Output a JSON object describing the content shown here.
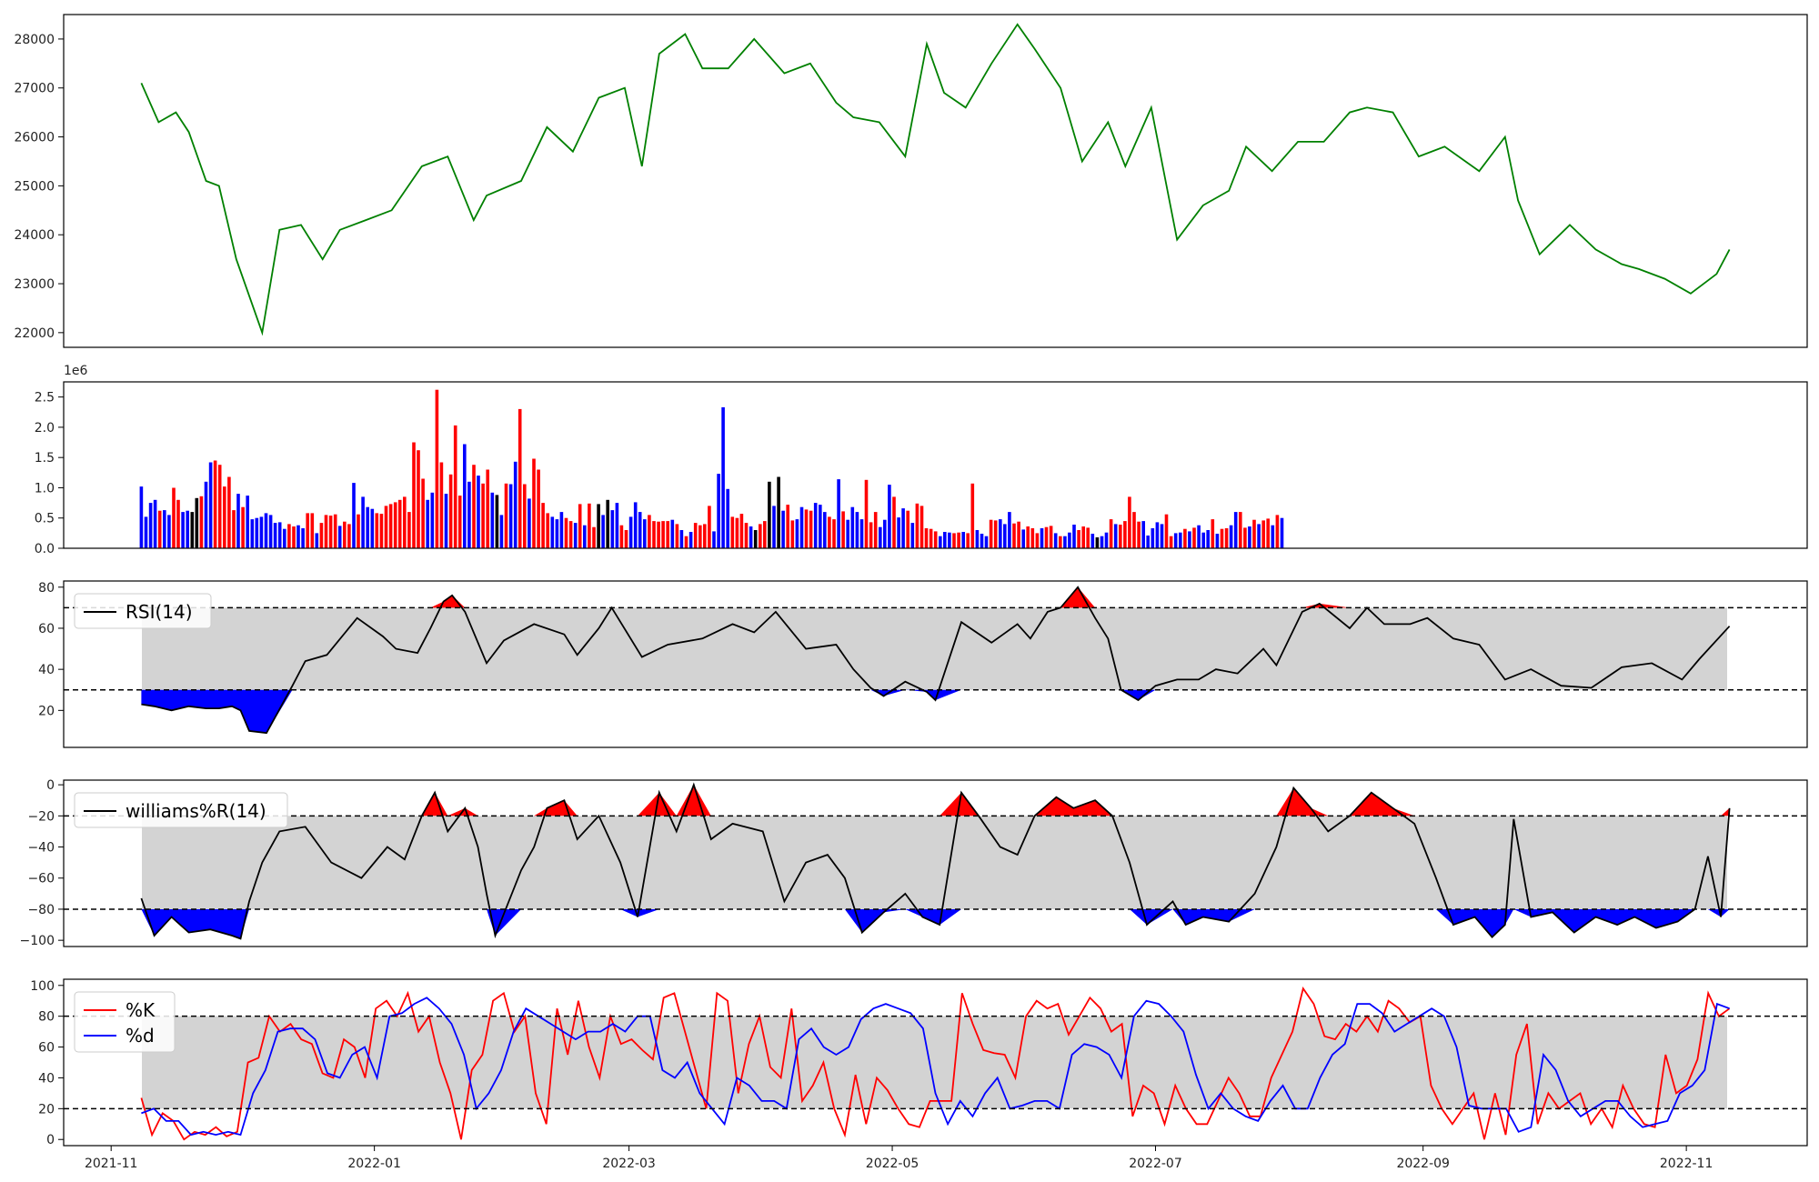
{
  "chart_data": [
    {
      "type": "line",
      "panel": "price",
      "x": [
        "2021-11-08",
        "2021-11-12",
        "2021-11-16",
        "2021-11-19",
        "2021-11-23",
        "2021-11-26",
        "2021-11-30",
        "2021-12-06",
        "2021-12-10",
        "2021-12-15",
        "2021-12-20",
        "2021-12-24",
        "2021-12-30",
        "2022-01-05",
        "2022-01-12",
        "2022-01-18",
        "2022-01-24",
        "2022-01-27",
        "2022-02-04",
        "2022-02-10",
        "2022-02-16",
        "2022-02-22",
        "2022-02-28",
        "2022-03-04",
        "2022-03-08",
        "2022-03-14",
        "2022-03-18",
        "2022-03-24",
        "2022-03-30",
        "2022-04-06",
        "2022-04-12",
        "2022-04-18",
        "2022-04-22",
        "2022-04-28",
        "2022-05-04",
        "2022-05-09",
        "2022-05-13",
        "2022-05-18",
        "2022-05-24",
        "2022-05-30",
        "2022-06-03",
        "2022-06-09",
        "2022-06-14",
        "2022-06-20",
        "2022-06-24",
        "2022-06-30",
        "2022-07-06",
        "2022-07-12",
        "2022-07-18",
        "2022-07-22",
        "2022-07-28",
        "2022-08-03",
        "2022-08-09",
        "2022-08-15",
        "2022-08-19",
        "2022-08-25",
        "2022-08-31",
        "2022-09-06",
        "2022-09-14",
        "2022-09-20",
        "2022-09-23",
        "2022-09-28",
        "2022-10-05",
        "2022-10-11",
        "2022-10-17",
        "2022-10-21",
        "2022-10-27",
        "2022-11-02",
        "2022-11-08",
        "2022-11-11"
      ],
      "values": [
        27100,
        26300,
        26500,
        26100,
        25100,
        25000,
        23500,
        22000,
        24100,
        24200,
        23500,
        24100,
        24300,
        24500,
        25400,
        25600,
        24300,
        24800,
        25100,
        26200,
        25700,
        26800,
        27000,
        25400,
        27700,
        28100,
        27400,
        27400,
        28000,
        27300,
        27500,
        26700,
        26400,
        26300,
        25600,
        27900,
        26900,
        26600,
        27500,
        28300,
        27800,
        27000,
        25500,
        26300,
        25400,
        26600,
        23900,
        24600,
        24900,
        25800,
        25300,
        25900,
        25900,
        26500,
        26600,
        26500,
        25600,
        25800,
        25300,
        26000,
        24700,
        23600,
        24200,
        23700,
        23400,
        23300,
        23100,
        22800,
        23200,
        23700
      ],
      "color": "#008000",
      "ylim": [
        21700,
        28500
      ],
      "yticks": [
        22000,
        23000,
        24000,
        25000,
        26000,
        27000,
        28000
      ]
    },
    {
      "type": "bar",
      "panel": "volume",
      "x_start": "2021-11-08",
      "interval_days": 1.07,
      "values": [
        1.02,
        0.52,
        0.75,
        0.8,
        0.62,
        0.63,
        0.55,
        1.0,
        0.8,
        0.6,
        0.62,
        0.6,
        0.83,
        0.86,
        1.1,
        1.42,
        1.45,
        1.38,
        1.02,
        1.18,
        0.63,
        0.9,
        0.68,
        0.87,
        0.48,
        0.5,
        0.52,
        0.58,
        0.55,
        0.42,
        0.43,
        0.32,
        0.4,
        0.36,
        0.38,
        0.33,
        0.58,
        0.58,
        0.25,
        0.42,
        0.55,
        0.54,
        0.56,
        0.37,
        0.44,
        0.4,
        1.08,
        0.56,
        0.85,
        0.68,
        0.65,
        0.58,
        0.57,
        0.7,
        0.73,
        0.76,
        0.8,
        0.85,
        0.6,
        1.75,
        1.62,
        1.15,
        0.8,
        0.92,
        2.62,
        1.42,
        0.9,
        1.22,
        2.03,
        0.87,
        1.72,
        1.1,
        1.38,
        1.2,
        1.07,
        1.3,
        0.92,
        0.88,
        0.55,
        1.07,
        1.06,
        1.43,
        2.3,
        1.06,
        0.82,
        1.48,
        1.3,
        0.75,
        0.58,
        0.52,
        0.48,
        0.6,
        0.5,
        0.45,
        0.42,
        0.73,
        0.38,
        0.74,
        0.35,
        0.73,
        0.55,
        0.8,
        0.63,
        0.75,
        0.38,
        0.3,
        0.52,
        0.76,
        0.6,
        0.48,
        0.55,
        0.45,
        0.44,
        0.45,
        0.45,
        0.47,
        0.4,
        0.3,
        0.2,
        0.27,
        0.42,
        0.38,
        0.4,
        0.7,
        0.28,
        1.23,
        2.33,
        0.98,
        0.52,
        0.5,
        0.57,
        0.42,
        0.36,
        0.3,
        0.4,
        0.45,
        1.1,
        0.7,
        1.18,
        0.62,
        0.72,
        0.46,
        0.48,
        0.68,
        0.64,
        0.62,
        0.75,
        0.72,
        0.6,
        0.52,
        0.48,
        1.14,
        0.61,
        0.47,
        0.68,
        0.6,
        0.48,
        1.13,
        0.43,
        0.6,
        0.35,
        0.47,
        1.05,
        0.85,
        0.51,
        0.66,
        0.62,
        0.42,
        0.74,
        0.7,
        0.33,
        0.32,
        0.28,
        0.2,
        0.27,
        0.26,
        0.25,
        0.26,
        0.27,
        0.25,
        1.07,
        0.3,
        0.24,
        0.2,
        0.47,
        0.46,
        0.48,
        0.4,
        0.6,
        0.41,
        0.44,
        0.31,
        0.36,
        0.33,
        0.25,
        0.33,
        0.35,
        0.37,
        0.25,
        0.2,
        0.2,
        0.26,
        0.39,
        0.3,
        0.36,
        0.34,
        0.24,
        0.18,
        0.2,
        0.26,
        0.48,
        0.4,
        0.39,
        0.45,
        0.85,
        0.6,
        0.44,
        0.45,
        0.21,
        0.33,
        0.43,
        0.4,
        0.56,
        0.2,
        0.25,
        0.26,
        0.32,
        0.28,
        0.34,
        0.38,
        0.26,
        0.3,
        0.48,
        0.24,
        0.32,
        0.33,
        0.38,
        0.6,
        0.6,
        0.34,
        0.36,
        0.47,
        0.4,
        0.46,
        0.49,
        0.38,
        0.55,
        0.5
      ],
      "colors": "bbbbrbbrrbbkkrbbrrrrrbrbbbbbbbbbrrbbrrbrrrrbrrbrbbbrrrrrrrrrrrbbrrbrrrbbrbrrbkbrbbrrbrrrrbbbrrbrbrrkbkbbrrbbbbrrrrrbrbrbrrrrbbbbrrrrbkrrkbkbrrbbrrbbbrrbrbbbbrrrbbbrbbrbrrrrrbbbrrbrrbbbrrbbbrrbrrrbrrbrbbbrrrbkbbrbrrrrrbbbbbrrbbrbrbbbrbrrbbrrbrbrrbrbrrrrrrbrrbrrrrbr",
      "ylim": [
        0,
        2.75
      ],
      "yticks": [
        0.0,
        0.5,
        1.0,
        1.5,
        2.0,
        2.5
      ],
      "offset_label": "1e6"
    },
    {
      "type": "line",
      "panel": "rsi",
      "series": [
        {
          "name": "RSI(14)",
          "color": "#000000"
        }
      ],
      "x": [
        "2021-11-08",
        "2021-11-11",
        "2021-11-15",
        "2021-11-19",
        "2021-11-23",
        "2021-11-26",
        "2021-11-29",
        "2021-12-01",
        "2021-12-03",
        "2021-12-07",
        "2021-12-13",
        "2021-12-16",
        "2021-12-21",
        "2021-12-28",
        "2022-01-03",
        "2022-01-06",
        "2022-01-11",
        "2022-01-14",
        "2022-01-17",
        "2022-01-19",
        "2022-01-22",
        "2022-01-27",
        "2022-01-31",
        "2022-02-07",
        "2022-02-14",
        "2022-02-17",
        "2022-02-22",
        "2022-02-25",
        "2022-03-04",
        "2022-03-10",
        "2022-03-18",
        "2022-03-25",
        "2022-03-30",
        "2022-04-04",
        "2022-04-11",
        "2022-04-18",
        "2022-04-22",
        "2022-04-26",
        "2022-04-29",
        "2022-05-04",
        "2022-05-09",
        "2022-05-11",
        "2022-05-17",
        "2022-05-24",
        "2022-05-30",
        "2022-06-02",
        "2022-06-06",
        "2022-06-09",
        "2022-06-13",
        "2022-06-17",
        "2022-06-20",
        "2022-06-23",
        "2022-06-27",
        "2022-07-01",
        "2022-07-06",
        "2022-07-11",
        "2022-07-15",
        "2022-07-20",
        "2022-07-26",
        "2022-07-29",
        "2022-08-04",
        "2022-08-08",
        "2022-08-15",
        "2022-08-19",
        "2022-08-23",
        "2022-08-29",
        "2022-09-02",
        "2022-09-08",
        "2022-09-14",
        "2022-09-20",
        "2022-09-26",
        "2022-10-03",
        "2022-10-10",
        "2022-10-17",
        "2022-10-24",
        "2022-10-31",
        "2022-11-04",
        "2022-11-11"
      ],
      "values": [
        23,
        22,
        20,
        22,
        21,
        21,
        22,
        20,
        10,
        9,
        32,
        44,
        47,
        65,
        56,
        50,
        48,
        60,
        73,
        76,
        68,
        43,
        54,
        62,
        57,
        47,
        60,
        70,
        46,
        52,
        55,
        62,
        58,
        68,
        50,
        52,
        40,
        31,
        27,
        34,
        29,
        25,
        63,
        53,
        62,
        55,
        68,
        70,
        80,
        65,
        55,
        30,
        25,
        32,
        35,
        35,
        40,
        38,
        50,
        42,
        68,
        72,
        60,
        70,
        62,
        62,
        65,
        55,
        52,
        35,
        40,
        32,
        31,
        41,
        43,
        35,
        45,
        61
      ],
      "thresholds": [
        70,
        30
      ],
      "ylim": [
        2,
        83
      ],
      "yticks": [
        20,
        40,
        60,
        80
      ]
    },
    {
      "type": "line",
      "panel": "williams",
      "series": [
        {
          "name": "williams%R(14)",
          "color": "#000000"
        }
      ],
      "x": [
        "2021-11-08",
        "2021-11-11",
        "2021-11-15",
        "2021-11-19",
        "2021-11-24",
        "2021-11-29",
        "2021-12-01",
        "2021-12-03",
        "2021-12-06",
        "2021-12-10",
        "2021-12-16",
        "2021-12-22",
        "2021-12-29",
        "2022-01-04",
        "2022-01-08",
        "2022-01-12",
        "2022-01-15",
        "2022-01-18",
        "2022-01-22",
        "2022-01-25",
        "2022-01-27",
        "2022-01-29",
        "2022-02-04",
        "2022-02-07",
        "2022-02-10",
        "2022-02-14",
        "2022-02-17",
        "2022-02-22",
        "2022-02-27",
        "2022-03-03",
        "2022-03-08",
        "2022-03-12",
        "2022-03-16",
        "2022-03-20",
        "2022-03-25",
        "2022-04-01",
        "2022-04-06",
        "2022-04-11",
        "2022-04-16",
        "2022-04-20",
        "2022-04-24",
        "2022-04-29",
        "2022-05-04",
        "2022-05-08",
        "2022-05-12",
        "2022-05-17",
        "2022-05-21",
        "2022-05-26",
        "2022-05-30",
        "2022-06-03",
        "2022-06-08",
        "2022-06-12",
        "2022-06-17",
        "2022-06-21",
        "2022-06-25",
        "2022-06-29",
        "2022-07-05",
        "2022-07-08",
        "2022-07-12",
        "2022-07-18",
        "2022-07-24",
        "2022-07-29",
        "2022-08-02",
        "2022-08-06",
        "2022-08-10",
        "2022-08-15",
        "2022-08-20",
        "2022-08-25",
        "2022-08-30",
        "2022-09-04",
        "2022-09-08",
        "2022-09-13",
        "2022-09-17",
        "2022-09-20",
        "2022-09-22",
        "2022-09-26",
        "2022-10-01",
        "2022-10-06",
        "2022-10-11",
        "2022-10-16",
        "2022-10-20",
        "2022-10-25",
        "2022-10-30",
        "2022-11-03",
        "2022-11-06",
        "2022-11-09",
        "2022-11-11"
      ],
      "values": [
        -73,
        -97,
        -85,
        -95,
        -93,
        -97,
        -99,
        -75,
        -50,
        -30,
        -27,
        -50,
        -60,
        -40,
        -48,
        -20,
        -5,
        -30,
        -15,
        -40,
        -70,
        -97,
        -55,
        -40,
        -15,
        -10,
        -35,
        -20,
        -50,
        -85,
        -5,
        -30,
        0,
        -35,
        -25,
        -30,
        -75,
        -50,
        -45,
        -60,
        -95,
        -82,
        -70,
        -85,
        -90,
        -5,
        -20,
        -40,
        -45,
        -20,
        -8,
        -15,
        -10,
        -20,
        -50,
        -90,
        -75,
        -90,
        -85,
        -88,
        -70,
        -40,
        -2,
        -15,
        -30,
        -20,
        -5,
        -15,
        -25,
        -60,
        -90,
        -85,
        -98,
        -90,
        -22,
        -85,
        -82,
        -95,
        -85,
        -90,
        -85,
        -92,
        -88,
        -80,
        -46,
        -85,
        -15
      ],
      "thresholds": [
        -20,
        -80
      ],
      "ylim": [
        -104,
        3
      ],
      "yticks": [
        -100,
        -80,
        -60,
        -40,
        -20,
        0
      ]
    },
    {
      "type": "line",
      "panel": "stochastic",
      "series": [
        {
          "name": "%K",
          "color": "#ff0000",
          "values": [
            27,
            3,
            17,
            12,
            0,
            5,
            3,
            8,
            2,
            5,
            50,
            53,
            80,
            70,
            75,
            65,
            62,
            43,
            40,
            65,
            60,
            40,
            85,
            90,
            80,
            95,
            70,
            80,
            50,
            30,
            0,
            45,
            55,
            90,
            95,
            70,
            80,
            30,
            10,
            85,
            55,
            90,
            60,
            40,
            80,
            62,
            65,
            58,
            52,
            92,
            95,
            70,
            45,
            20,
            95,
            90,
            30,
            62,
            80,
            47,
            40,
            85,
            25,
            35,
            50,
            20,
            3,
            42,
            10,
            40,
            32,
            20,
            10,
            8,
            25,
            25,
            25,
            95,
            75,
            58,
            56,
            55,
            40,
            80,
            90,
            85,
            88,
            68,
            80,
            92,
            85,
            70,
            75,
            15,
            35,
            30,
            10,
            35,
            20,
            10,
            10,
            25,
            40,
            30,
            15,
            15,
            40,
            55,
            70,
            98,
            88,
            67,
            65,
            75,
            70,
            80,
            70,
            90,
            85,
            76,
            80,
            35,
            20,
            10,
            20,
            30,
            0,
            30,
            3,
            55,
            75,
            10,
            30,
            20,
            25,
            30,
            10,
            20,
            8,
            35,
            20,
            10,
            8,
            55,
            30,
            35,
            52,
            95,
            80,
            85
          ]
        },
        {
          "name": "%d",
          "color": "#0000ff",
          "values": [
            17,
            20,
            12,
            12,
            3,
            5,
            3,
            5,
            3,
            30,
            45,
            70,
            72,
            72,
            65,
            43,
            40,
            55,
            60,
            40,
            80,
            82,
            88,
            92,
            85,
            75,
            55,
            20,
            30,
            45,
            70,
            85,
            80,
            75,
            70,
            65,
            70,
            70,
            75,
            70,
            80,
            80,
            45,
            40,
            50,
            30,
            20,
            10,
            40,
            35,
            25,
            25,
            20,
            65,
            72,
            60,
            55,
            60,
            78,
            85,
            88,
            85,
            82,
            72,
            30,
            10,
            25,
            15,
            30,
            40,
            20,
            22,
            25,
            25,
            20,
            55,
            62,
            60,
            55,
            40,
            80,
            90,
            88,
            80,
            70,
            42,
            20,
            30,
            20,
            15,
            12,
            25,
            35,
            20,
            20,
            40,
            55,
            62,
            88,
            88,
            82,
            70,
            75,
            80,
            85,
            80,
            60,
            22,
            20,
            20,
            20,
            5,
            8,
            55,
            45,
            25,
            15,
            20,
            25,
            25,
            15,
            8,
            10,
            12,
            30,
            35,
            45,
            88,
            85
          ]
        }
      ],
      "x_start": "2021-11-08",
      "x_end": "2022-11-11",
      "thresholds": [
        80,
        20
      ],
      "ylim": [
        -4,
        104
      ],
      "yticks": [
        0,
        20,
        40,
        60,
        80,
        100
      ]
    }
  ],
  "x_axis": {
    "ticks": [
      "2021-11",
      "2022-01",
      "2022-03",
      "2022-05",
      "2022-07",
      "2022-09",
      "2022-11"
    ],
    "xlim": [
      "2021-10-21",
      "2022-11-29"
    ]
  },
  "colors": {
    "up": "#ff0000",
    "down": "#0000ff",
    "flat": "#000000",
    "band": "#d3d3d3",
    "price": "#008000"
  }
}
